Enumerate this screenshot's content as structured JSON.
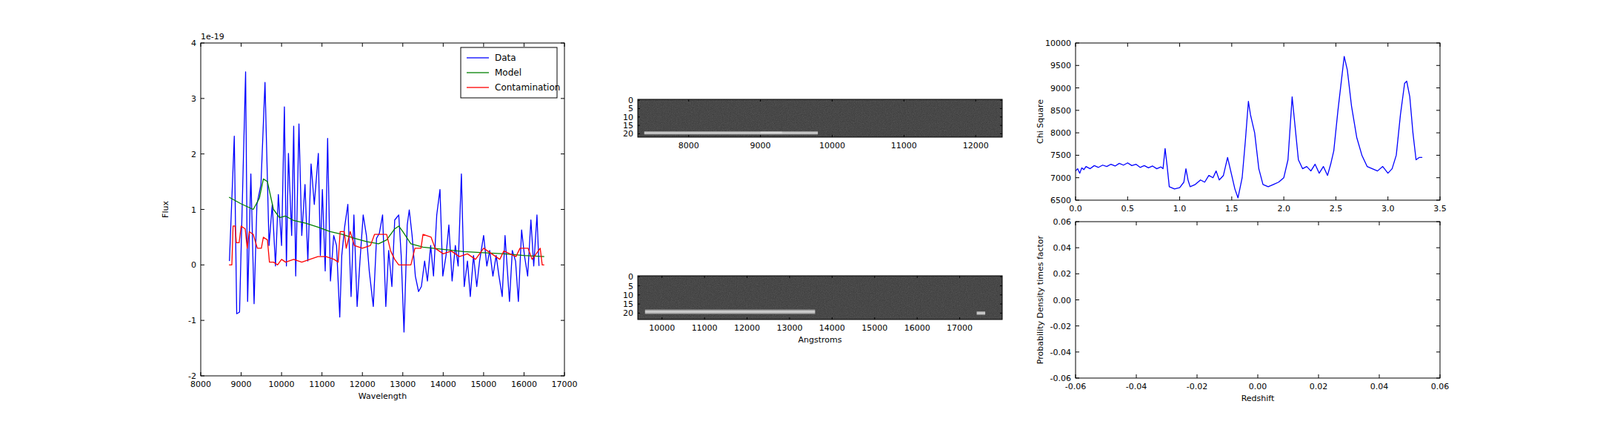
{
  "chart_data": [
    {
      "type": "line",
      "x_label": "Wavelength",
      "y_label": "Flux",
      "y_offset_text": "1e-19",
      "xlim": [
        8000,
        17000
      ],
      "ylim": [
        -2,
        4
      ],
      "xticks": [
        8000,
        9000,
        10000,
        11000,
        12000,
        13000,
        14000,
        15000,
        16000,
        17000
      ],
      "yticks": [
        -2,
        -1,
        0,
        1,
        2,
        3,
        4
      ],
      "legend": "upper right",
      "series": [
        {
          "name": "Data",
          "color": "#0000ff",
          "x": [
            8710,
            8830,
            8890,
            8960,
            9110,
            9160,
            9240,
            9320,
            9390,
            9490,
            9590,
            9690,
            9770,
            9850,
            9920,
            10000,
            10070,
            10120,
            10170,
            10250,
            10300,
            10350,
            10430,
            10500,
            10580,
            10650,
            10730,
            10810,
            10910,
            10960,
            11010,
            11080,
            11140,
            11210,
            11290,
            11360,
            11440,
            11490,
            11560,
            11640,
            11720,
            11790,
            11870,
            11940,
            12020,
            12100,
            12170,
            12270,
            12350,
            12420,
            12500,
            12580,
            12650,
            12730,
            12800,
            12900,
            12960,
            13030,
            13110,
            13160,
            13230,
            13310,
            13390,
            13460,
            13540,
            13610,
            13690,
            13760,
            13840,
            13920,
            13990,
            14070,
            14140,
            14220,
            14300,
            14370,
            14450,
            14520,
            14600,
            14670,
            14750,
            14830,
            14900,
            15000,
            15080,
            15150,
            15230,
            15310,
            15380,
            15460,
            15530,
            15640,
            15710,
            15790,
            15860,
            15940,
            16010,
            16090,
            16170,
            16240,
            16320,
            16370
          ],
          "values": [
            0.07,
            2.32,
            -0.88,
            -0.85,
            3.48,
            -0.66,
            1.64,
            -0.7,
            1.09,
            1.45,
            3.29,
            0.35,
            1.09,
            -0.02,
            1.27,
            0.35,
            2.85,
            -0.02,
            2.01,
            0.53,
            2.5,
            -0.2,
            2.54,
            0.53,
            1.45,
            0.07,
            1.82,
            1.09,
            2.01,
            0.17,
            1.36,
            -0.11,
            2.28,
            -0.29,
            0.53,
            0.35,
            -0.94,
            0.17,
            0.68,
            1.09,
            -0.57,
            0.9,
            -0.75,
            0.07,
            0.9,
            0.53,
            -0.11,
            -0.75,
            0.48,
            0.57,
            0.9,
            -0.75,
            0.26,
            -0.39,
            0.81,
            0.9,
            0.17,
            -1.21,
            0.72,
            0.99,
            0.53,
            -0.2,
            -0.48,
            -0.39,
            0.07,
            -0.29,
            0.35,
            -0.2,
            0.9,
            1.36,
            -0.2,
            0.17,
            0.72,
            -0.29,
            0.35,
            -0.02,
            1.64,
            -0.39,
            0.07,
            -0.57,
            0.17,
            -0.39,
            0.07,
            0.53,
            -0.02,
            0.26,
            -0.2,
            0.17,
            -0.2,
            -0.57,
            0.53,
            -0.66,
            0.26,
            0.07,
            -0.66,
            0.63,
            0.17,
            -0.2,
            0.81,
            -0.02,
            0.9,
            -0.02
          ]
        },
        {
          "name": "Model",
          "color": "#008000",
          "x": [
            8700,
            9000,
            9300,
            9450,
            9550,
            9650,
            9800,
            9950,
            10100,
            10300,
            10600,
            10900,
            11200,
            11500,
            11800,
            12100,
            12400,
            12600,
            12800,
            12900,
            13000,
            13200,
            13500,
            14000,
            14500,
            15000,
            15500,
            16000,
            16500
          ],
          "values": [
            1.22,
            1.1,
            1.0,
            1.2,
            1.55,
            1.5,
            1.0,
            0.85,
            0.88,
            0.8,
            0.75,
            0.68,
            0.6,
            0.55,
            0.48,
            0.42,
            0.38,
            0.45,
            0.65,
            0.7,
            0.6,
            0.38,
            0.32,
            0.28,
            0.24,
            0.22,
            0.2,
            0.17,
            0.15
          ]
        },
        {
          "name": "Contamination",
          "color": "#ff0000",
          "x": [
            8700,
            8770,
            8800,
            8850,
            8880,
            8950,
            9000,
            9100,
            9150,
            9200,
            9300,
            9400,
            9500,
            9550,
            9650,
            9700,
            9800,
            9900,
            10000,
            10100,
            10300,
            10500,
            10700,
            10900,
            11100,
            11300,
            11400,
            11450,
            11550,
            11600,
            11700,
            11800,
            12000,
            12200,
            12300,
            12600,
            12700,
            12800,
            12900,
            13200,
            13300,
            13450,
            13500,
            13700,
            13800,
            14000,
            14200,
            14400,
            14600,
            14800,
            15000,
            15200,
            15400,
            15500,
            15800,
            15900,
            16100,
            16200,
            16400,
            16450,
            16500
          ],
          "values": [
            0,
            0,
            0.7,
            0.7,
            0.4,
            0.4,
            0.7,
            0.65,
            0.3,
            0.6,
            0.55,
            0.3,
            0.3,
            0.5,
            0.45,
            0.05,
            0.05,
            0,
            0.1,
            0.05,
            0.1,
            0.05,
            0.1,
            0.15,
            0.15,
            0.1,
            0.05,
            0.6,
            0.6,
            0.3,
            0.6,
            0.35,
            0.3,
            0.35,
            0.55,
            0.55,
            0.25,
            0.1,
            0,
            0,
            0.3,
            0.3,
            0.55,
            0.5,
            0.3,
            0.2,
            0.25,
            0.15,
            0.2,
            0.1,
            0.3,
            0.2,
            0.1,
            0.25,
            0.15,
            0.3,
            0.3,
            0.1,
            0.3,
            0,
            0
          ]
        }
      ]
    },
    {
      "type": "image",
      "xlim": [
        7290,
        12370
      ],
      "ylim": [
        22,
        -0.5
      ],
      "xticks": [
        8000,
        9000,
        10000,
        11000,
        12000
      ],
      "yticks": [
        0,
        5,
        10,
        15,
        20
      ],
      "traces": [
        {
          "x": [
            7380,
            9800
          ],
          "y": [
            18.5,
            20.5
          ]
        },
        {
          "x": [
            9000,
            9300
          ],
          "y": [
            18.5,
            20.3
          ]
        }
      ]
    },
    {
      "type": "image",
      "x_label": "Angstroms",
      "xlim": [
        9430,
        18000
      ],
      "ylim": [
        23.5,
        -0.5
      ],
      "xticks": [
        10000,
        11000,
        12000,
        13000,
        14000,
        15000,
        16000,
        17000
      ],
      "yticks": [
        0,
        5,
        10,
        15,
        20
      ],
      "traces": [
        {
          "x": [
            9600,
            13600
          ],
          "y": [
            18,
            20.5
          ]
        },
        {
          "x": [
            17400,
            17600
          ],
          "y": [
            19,
            21
          ]
        }
      ]
    },
    {
      "type": "line",
      "y_label": "Chi Square",
      "xlim": [
        0,
        3.5
      ],
      "ylim": [
        6500,
        10000
      ],
      "xticks": [
        {
          "value": 0,
          "label": "0.0"
        },
        0.5,
        {
          "value": 1,
          "label": "1.0"
        },
        1.5,
        {
          "value": 2,
          "label": "2.0"
        },
        2.5,
        {
          "value": 3,
          "label": "3.0"
        },
        3.5
      ],
      "yticks": [
        6500,
        7000,
        7500,
        8000,
        8500,
        9000,
        9500,
        10000
      ],
      "series": [
        {
          "color": "#0000ff",
          "x": [
            0,
            0.02,
            0.04,
            0.06,
            0.08,
            0.1,
            0.14,
            0.18,
            0.22,
            0.26,
            0.3,
            0.34,
            0.38,
            0.42,
            0.46,
            0.5,
            0.54,
            0.58,
            0.62,
            0.66,
            0.7,
            0.74,
            0.78,
            0.82,
            0.84,
            0.86,
            0.88,
            0.9,
            0.95,
            1.0,
            1.04,
            1.06,
            1.08,
            1.1,
            1.15,
            1.2,
            1.24,
            1.28,
            1.32,
            1.35,
            1.38,
            1.42,
            1.46,
            1.5,
            1.53,
            1.56,
            1.6,
            1.63,
            1.66,
            1.68,
            1.72,
            1.76,
            1.8,
            1.85,
            1.9,
            1.95,
            2.0,
            2.04,
            2.08,
            2.11,
            2.14,
            2.18,
            2.22,
            2.26,
            2.3,
            2.34,
            2.38,
            2.42,
            2.45,
            2.48,
            2.52,
            2.56,
            2.58,
            2.61,
            2.65,
            2.7,
            2.75,
            2.8,
            2.85,
            2.9,
            2.95,
            3.0,
            3.04,
            3.08,
            3.12,
            3.16,
            3.18,
            3.21,
            3.24,
            3.27,
            3.3,
            3.33
          ],
          "values": [
            7150,
            7200,
            7100,
            7220,
            7180,
            7250,
            7200,
            7270,
            7230,
            7280,
            7250,
            7300,
            7260,
            7320,
            7280,
            7330,
            7270,
            7300,
            7230,
            7270,
            7220,
            7260,
            7200,
            7240,
            7200,
            7650,
            7250,
            6800,
            6750,
            6780,
            6900,
            7200,
            6950,
            6800,
            6850,
            6950,
            6900,
            7050,
            7000,
            7150,
            6950,
            7050,
            7450,
            7050,
            6750,
            6550,
            7000,
            7800,
            8700,
            8400,
            8000,
            7200,
            6850,
            6800,
            6850,
            6900,
            7000,
            7400,
            8800,
            8100,
            7400,
            7200,
            7250,
            7150,
            7300,
            7100,
            7250,
            7050,
            7300,
            7600,
            8500,
            9300,
            9700,
            9400,
            8600,
            7900,
            7500,
            7250,
            7200,
            7150,
            7250,
            7100,
            7200,
            7500,
            8400,
            9100,
            9150,
            8800,
            8000,
            7400,
            7450,
            7450
          ]
        }
      ]
    },
    {
      "type": "line",
      "x_label": "Redshift",
      "y_label": "Probability Density times factor",
      "xlim": [
        -0.06,
        0.06
      ],
      "ylim": [
        -0.06,
        0.06
      ],
      "xticks": [
        -0.06,
        -0.04,
        -0.02,
        {
          "value": 0,
          "label": "0.00"
        },
        0.02,
        0.04,
        0.06
      ],
      "yticks": [
        -0.06,
        -0.04,
        -0.02,
        {
          "value": 0,
          "label": "0.00"
        },
        0.02,
        0.04,
        0.06
      ],
      "series": []
    }
  ]
}
